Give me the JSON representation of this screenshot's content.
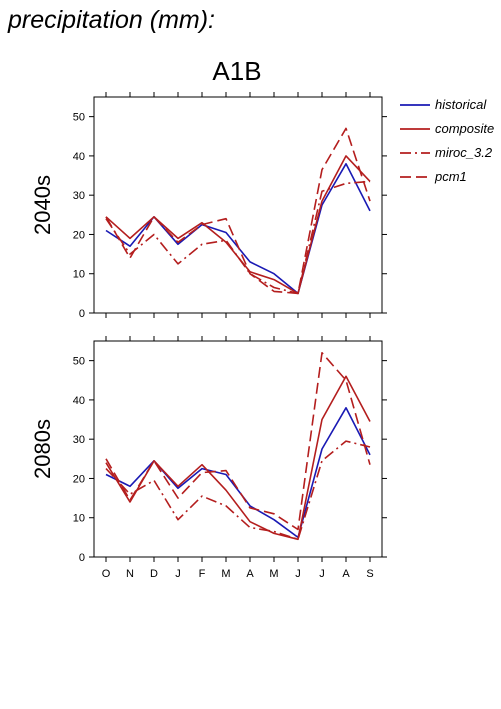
{
  "figure": {
    "title": "precipitation (mm):",
    "scenario": "A1B"
  },
  "chart_data": {
    "type": "line",
    "categories": [
      "O",
      "N",
      "D",
      "J",
      "F",
      "M",
      "A",
      "M",
      "J",
      "J",
      "A",
      "S"
    ],
    "ylim": [
      0,
      55
    ],
    "yticks": [
      0,
      10,
      20,
      30,
      40,
      50
    ],
    "grid": false,
    "legend_placement": "right",
    "series_styles": [
      {
        "name": "historical",
        "color": "#1a1ab4",
        "dash": "solid"
      },
      {
        "name": "composite",
        "color": "#b41e1e",
        "dash": "solid"
      },
      {
        "name": "miroc_3.2",
        "color": "#b41e1e",
        "dash": "dashdot"
      },
      {
        "name": "pcm1",
        "color": "#b41e1e",
        "dash": "dashed"
      }
    ],
    "panels": [
      {
        "label": "2040s",
        "series": [
          {
            "name": "historical",
            "values": [
              21,
              17,
              24.5,
              17.5,
              22.5,
              20.5,
              13,
              10,
              5,
              27.5,
              38,
              26
            ]
          },
          {
            "name": "composite",
            "values": [
              24.5,
              19,
              24.5,
              19,
              23,
              18,
              10.5,
              8.5,
              5,
              28.5,
              40,
              33.5
            ]
          },
          {
            "name": "miroc_3.2",
            "values": [
              24,
              15,
              20,
              12.5,
              17.5,
              18.5,
              10,
              6.5,
              5,
              31,
              33,
              33.5
            ]
          },
          {
            "name": "pcm1",
            "values": [
              24.5,
              14,
              24.5,
              18,
              22.5,
              24,
              10,
              5.5,
              5,
              36.5,
              47,
              28.5
            ]
          }
        ]
      },
      {
        "label": "2080s",
        "series": [
          {
            "name": "historical",
            "values": [
              21,
              18,
              24.5,
              17.5,
              22.5,
              21,
              13,
              9.5,
              5,
              27.5,
              38,
              26
            ]
          },
          {
            "name": "composite",
            "values": [
              24,
              14,
              24.5,
              18,
              23.5,
              17,
              9,
              6,
              4.5,
              35,
              46,
              34.5
            ]
          },
          {
            "name": "miroc_3.2",
            "values": [
              22.5,
              16,
              19.5,
              9.5,
              15.5,
              13,
              7.5,
              6.5,
              4.5,
              24.5,
              29.5,
              28
            ]
          },
          {
            "name": "pcm1",
            "values": [
              25,
              14.5,
              24.5,
              15,
              21.5,
              22,
              12.5,
              11,
              7,
              52,
              45,
              23.5
            ]
          }
        ]
      }
    ]
  }
}
